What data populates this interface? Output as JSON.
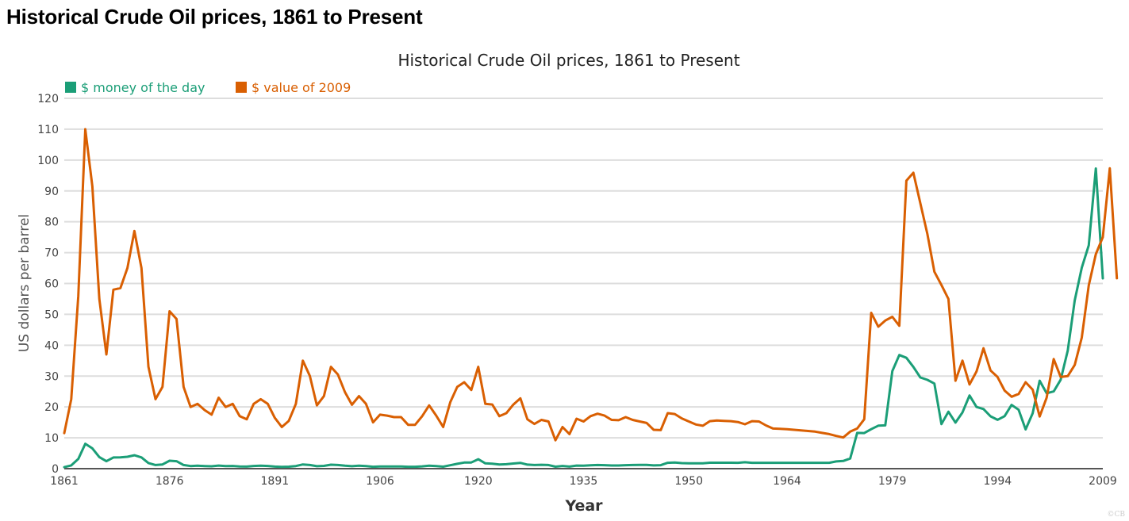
{
  "page": {
    "heading": "Historical Crude Oil prices, 1861 to Present"
  },
  "chart_data": {
    "type": "line",
    "title": "Historical Crude Oil prices, 1861 to Present",
    "xlabel": "Year",
    "ylabel": "US dollars per barrel",
    "xlim": [
      1861,
      2009
    ],
    "ylim": [
      0,
      120
    ],
    "grid": true,
    "legend_position": "top-left",
    "x_ticks": [
      1861,
      1876,
      1891,
      1906,
      1920,
      1935,
      1950,
      1964,
      1979,
      1994,
      2009
    ],
    "y_ticks": [
      0,
      10,
      20,
      30,
      40,
      50,
      60,
      70,
      80,
      90,
      100,
      110,
      120
    ],
    "credit": "©CB",
    "x_start": 1861,
    "series": [
      {
        "name": "$ money of the day",
        "color": "#1b9e77",
        "values": [
          0.49,
          1.05,
          3.15,
          8.06,
          6.59,
          3.74,
          2.41,
          3.63,
          3.64,
          3.86,
          4.34,
          3.64,
          1.83,
          1.17,
          1.35,
          2.56,
          2.42,
          1.19,
          0.86,
          0.95,
          0.86,
          0.78,
          1.0,
          0.84,
          0.88,
          0.71,
          0.67,
          0.88,
          0.94,
          0.87,
          0.67,
          0.56,
          0.64,
          0.84,
          1.36,
          1.18,
          0.79,
          0.91,
          1.29,
          1.19,
          0.96,
          0.8,
          0.94,
          0.86,
          0.62,
          0.73,
          0.72,
          0.72,
          0.7,
          0.61,
          0.61,
          0.74,
          0.95,
          0.81,
          0.64,
          1.1,
          1.56,
          1.98,
          2.01,
          3.07,
          1.73,
          1.61,
          1.34,
          1.43,
          1.68,
          1.88,
          1.3,
          1.17,
          1.27,
          1.19,
          0.65,
          0.87,
          0.67,
          1.0,
          0.97,
          1.09,
          1.18,
          1.13,
          1.02,
          1.02,
          1.14,
          1.19,
          1.2,
          1.21,
          1.05,
          1.12,
          1.9,
          1.99,
          1.8,
          1.71,
          1.71,
          1.71,
          1.93,
          1.93,
          1.93,
          1.93,
          1.9,
          2.08,
          1.9,
          1.91,
          1.91,
          1.91,
          1.91,
          1.91,
          1.91,
          1.91,
          1.91,
          1.91,
          1.91,
          1.91,
          2.33,
          2.48,
          3.28,
          11.58,
          11.53,
          12.8,
          13.92,
          14.02,
          31.61,
          36.83,
          35.93,
          32.97,
          29.55,
          28.78,
          27.56,
          14.43,
          18.44,
          14.92,
          18.23,
          23.73,
          20.0,
          19.32,
          16.97,
          15.82,
          17.02,
          20.67,
          19.09,
          12.72,
          17.97,
          28.5,
          24.44,
          25.02,
          28.83,
          38.27,
          54.52,
          65.14,
          72.39,
          97.26,
          61.67
        ]
      },
      {
        "name": "$ value of 2009",
        "color": "#d95f02",
        "values": [
          11.5,
          22.5,
          56.0,
          110.0,
          91.5,
          55.0,
          37.0,
          58.0,
          58.5,
          65.0,
          77.0,
          65.0,
          33.0,
          22.5,
          26.5,
          51.0,
          48.5,
          26.5,
          20.0,
          21.0,
          19.0,
          17.5,
          23.0,
          20.0,
          21.0,
          17.0,
          16.0,
          21.0,
          22.5,
          21.0,
          16.5,
          13.5,
          15.5,
          21.0,
          35.0,
          30.0,
          20.5,
          23.5,
          33.0,
          30.5,
          24.8,
          20.7,
          23.5,
          21.0,
          15.0,
          17.5,
          17.2,
          16.7,
          16.7,
          14.2,
          14.2,
          17.0,
          20.5,
          17.2,
          13.5,
          21.5,
          26.5,
          28.0,
          25.5,
          33.0,
          21.0,
          20.8,
          17.0,
          18.0,
          20.8,
          22.8,
          16.0,
          14.5,
          15.8,
          15.3,
          9.2,
          13.5,
          11.2,
          16.2,
          15.3,
          17.0,
          17.8,
          17.2,
          15.8,
          15.7,
          16.7,
          15.8,
          15.3,
          14.8,
          12.6,
          12.5,
          18.0,
          17.7,
          16.3,
          15.3,
          14.3,
          13.9,
          15.4,
          15.6,
          15.5,
          15.4,
          15.1,
          14.4,
          15.4,
          15.3,
          14.0,
          13.0,
          12.9,
          12.8,
          12.6,
          12.4,
          12.2,
          12.0,
          11.6,
          11.2,
          10.6,
          10.1,
          12.0,
          13.0,
          16.0,
          50.5,
          46.0,
          48.0,
          49.2,
          46.3,
          93.3,
          95.9,
          86.0,
          76.0,
          63.8,
          59.5,
          55.0,
          28.5,
          35.0,
          27.3,
          31.5,
          39.0,
          31.8,
          29.7,
          25.3,
          23.3,
          24.2,
          28.0,
          25.6,
          16.9,
          23.0,
          35.5,
          29.7,
          30.0,
          33.6,
          42.5,
          59.4,
          69.5,
          75.0,
          97.3,
          61.7
        ]
      }
    ]
  }
}
